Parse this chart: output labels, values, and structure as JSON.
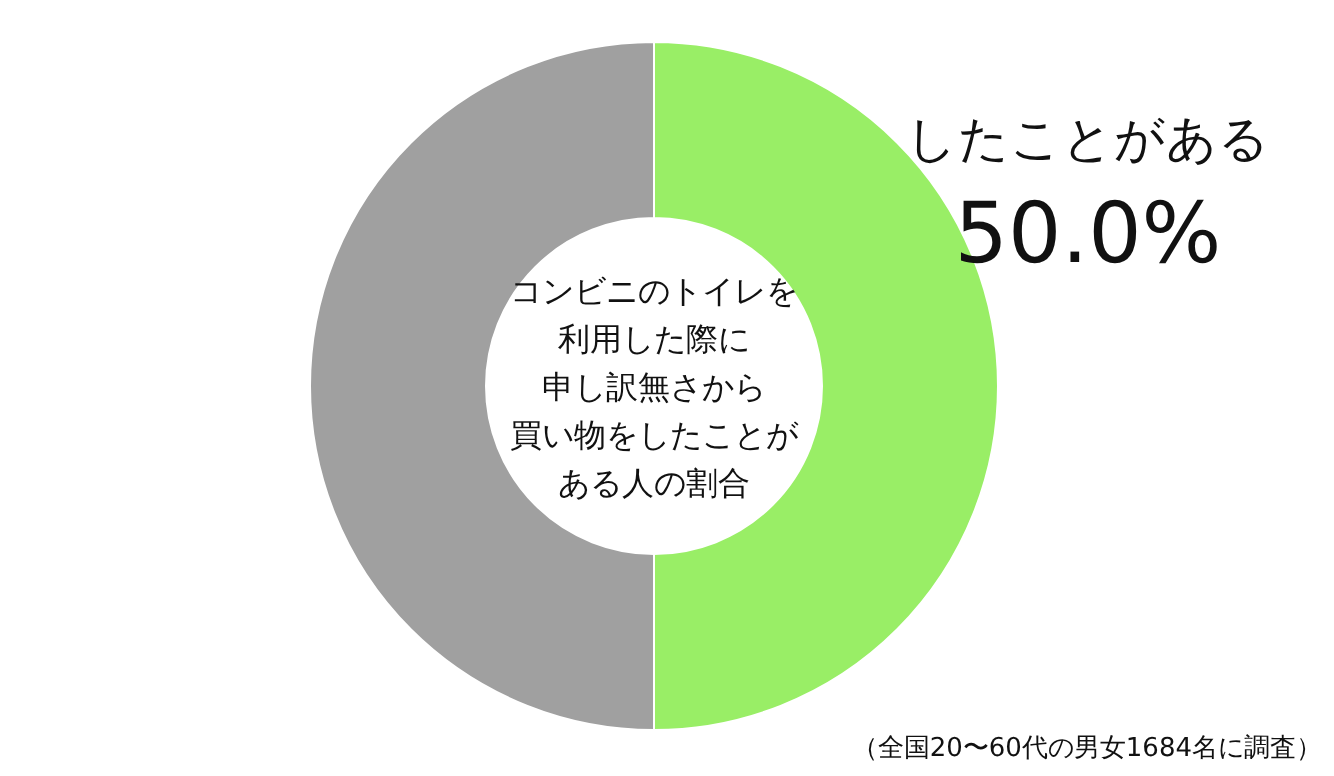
{
  "chart_data": {
    "type": "donut",
    "title": "コンビニのトイレを利用した際に申し訳無さから買い物をしたことがある人の割合",
    "categories": [
      "したことがある",
      null
    ],
    "values": [
      50,
      50
    ],
    "colors": [
      "#99ee66",
      "#a0a0a0"
    ],
    "value_labels": [
      "50.0%",
      null
    ],
    "annotations": [
      "（全国20〜60代の男女1684名に調査）"
    ]
  }
}
